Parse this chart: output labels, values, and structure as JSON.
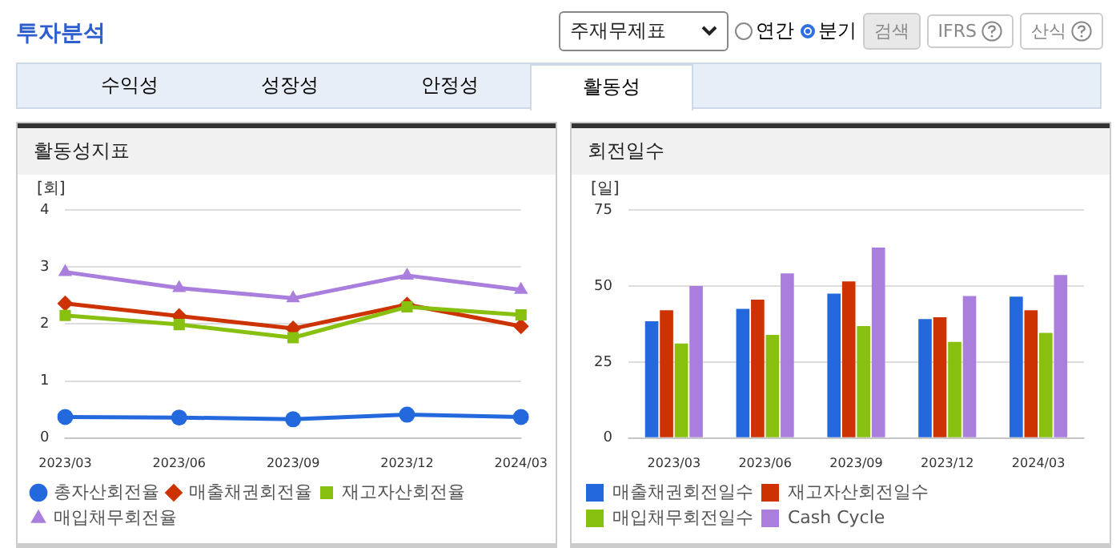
{
  "chart_data": [
    {
      "type": "line",
      "title": "활동성지표",
      "ylabel": "[회]",
      "categories": [
        "2023/03",
        "2023/06",
        "2023/09",
        "2023/12",
        "2024/03"
      ],
      "series": [
        {
          "name": "총자산회전율",
          "color": "#2468dd",
          "marker": "circle",
          "values": [
            0.37,
            0.36,
            0.33,
            0.41,
            0.37
          ]
        },
        {
          "name": "매출채권회전율",
          "color": "#cc3300",
          "marker": "diamond",
          "values": [
            2.36,
            2.14,
            1.92,
            2.34,
            1.96
          ]
        },
        {
          "name": "재고자산회전율",
          "color": "#88c010",
          "marker": "square",
          "values": [
            2.15,
            1.99,
            1.76,
            2.3,
            2.16
          ]
        },
        {
          "name": "매입채무회전율",
          "color": "#aa7edd",
          "marker": "triangle",
          "values": [
            2.91,
            2.63,
            2.45,
            2.85,
            2.6
          ]
        }
      ],
      "ylim": [
        0,
        4
      ],
      "yticks": [
        0,
        1,
        2,
        3,
        4
      ],
      "grid": "y",
      "legend": "bottom",
      "line_style": "solid",
      "annotations": [
        "투자분석",
        "주재무제표",
        "연간",
        "분기",
        "검색",
        "IFRS",
        "산식",
        "수익성",
        "성장성",
        "안정성",
        "활동성"
      ]
    },
    {
      "type": "bar",
      "title": "회전일수",
      "ylabel": "[일]",
      "categories": [
        "2023/03",
        "2023/06",
        "2023/09",
        "2023/12",
        "2024/03"
      ],
      "series": [
        {
          "name": "매출채권회전일수",
          "color": "#2468dd",
          "values": [
            38.4,
            42.5,
            47.5,
            39.1,
            46.5
          ]
        },
        {
          "name": "재고자산회전일수",
          "color": "#cc3300",
          "values": [
            42,
            45.5,
            51.5,
            39.7,
            42
          ]
        },
        {
          "name": "매입채무회전일수",
          "color": "#88c010",
          "values": [
            31.1,
            33.9,
            36.8,
            31.6,
            34.6
          ]
        },
        {
          "name": "Cash Cycle",
          "color": "#aa7edd",
          "values": [
            50,
            54.1,
            62.6,
            46.7,
            53.6
          ]
        }
      ],
      "ylim": [
        0,
        75
      ],
      "yticks": [
        0,
        25,
        50,
        75
      ],
      "grid": "y",
      "legend": "bottom"
    }
  ]
}
